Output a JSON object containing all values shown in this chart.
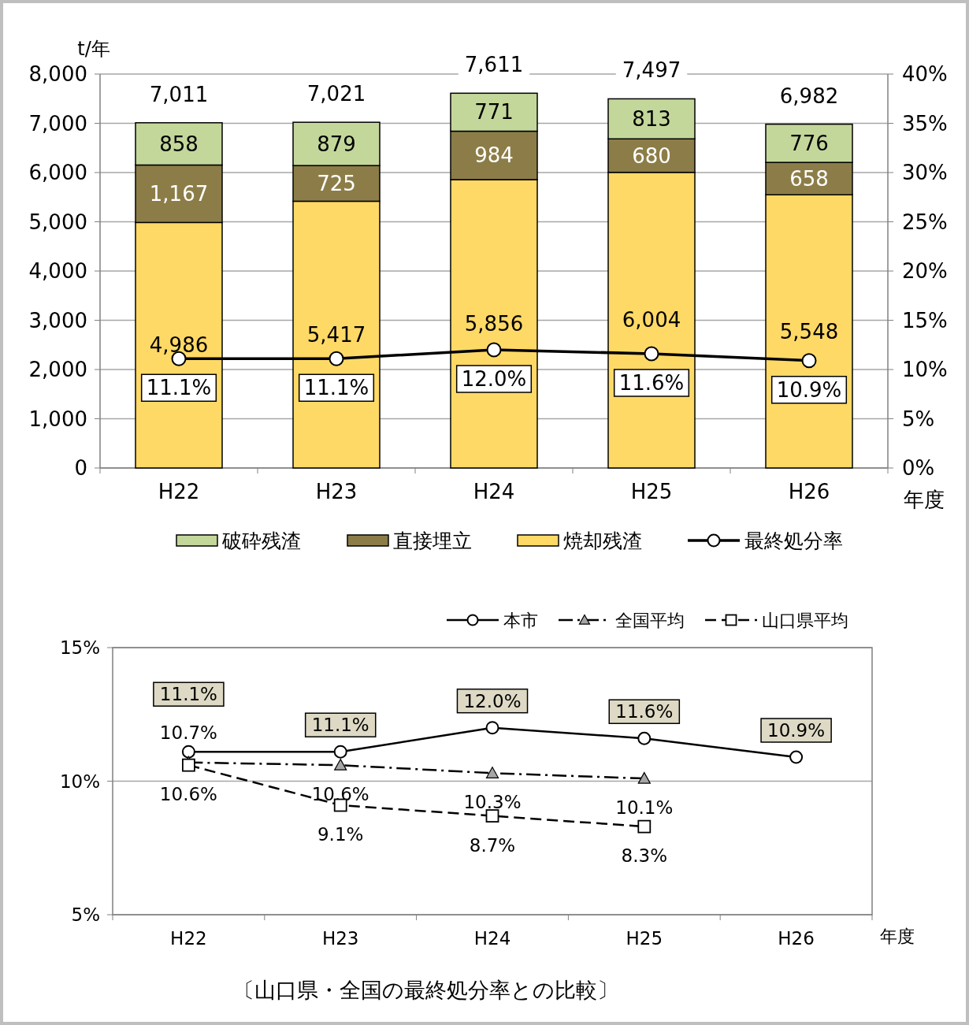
{
  "chart_data": [
    {
      "type": "bar",
      "stacked": true,
      "categories": [
        "H22",
        "H23",
        "H24",
        "H25",
        "H26"
      ],
      "ylabel": "t/年",
      "xlabel": "年度",
      "ylim": [
        0,
        8000
      ],
      "yticks": [
        {
          "value": 0,
          "label": "0"
        },
        {
          "value": 1000,
          "label": "1,000"
        },
        {
          "value": 2000,
          "label": "2,000"
        },
        {
          "value": 3000,
          "label": "3,000"
        },
        {
          "value": 4000,
          "label": "4,000"
        },
        {
          "value": 5000,
          "label": "5,000"
        },
        {
          "value": 6000,
          "label": "6,000"
        },
        {
          "value": 7000,
          "label": "7,000"
        },
        {
          "value": 8000,
          "label": "8,000"
        }
      ],
      "y2lim": [
        0,
        40
      ],
      "y2ticks": [
        {
          "value": 0,
          "label": "0%"
        },
        {
          "value": 5,
          "label": "5%"
        },
        {
          "value": 10,
          "label": "10%"
        },
        {
          "value": 15,
          "label": "15%"
        },
        {
          "value": 20,
          "label": "20%"
        },
        {
          "value": 25,
          "label": "25%"
        },
        {
          "value": 30,
          "label": "30%"
        },
        {
          "value": 35,
          "label": "35%"
        },
        {
          "value": 40,
          "label": "40%"
        }
      ],
      "grid": "y",
      "legend": "bottom",
      "totals": [
        "7,011",
        "7,021",
        "7,611",
        "7,497",
        "6,982"
      ],
      "series": [
        {
          "name": "焼却残渣",
          "color": "#ffd966",
          "values": [
            4986,
            5417,
            5856,
            6004,
            5548
          ],
          "value_labels": [
            "4,986",
            "5,417",
            "5,856",
            "6,004",
            "5,548"
          ]
        },
        {
          "name": "直接埋立",
          "color": "#8c7d48",
          "values": [
            1167,
            725,
            984,
            680,
            658
          ],
          "value_labels": [
            "1,167",
            "725",
            "984",
            "680",
            "658"
          ]
        },
        {
          "name": "破砕残渣",
          "color": "#c4d79b",
          "values": [
            858,
            879,
            771,
            813,
            776
          ],
          "value_labels": [
            "858",
            "879",
            "771",
            "813",
            "776"
          ]
        },
        {
          "name": "最終処分率",
          "type": "line",
          "axis": "y2",
          "color": "#000000",
          "marker": "circle",
          "line_style": "solid",
          "values": [
            11.1,
            11.1,
            12.0,
            11.6,
            10.9
          ],
          "value_labels": [
            "11.1%",
            "11.1%",
            "12.0%",
            "11.6%",
            "10.9%"
          ]
        }
      ]
    },
    {
      "type": "line",
      "categories": [
        "H22",
        "H23",
        "H24",
        "H25",
        "H26"
      ],
      "xlabel": "年度",
      "ylim": [
        5,
        15
      ],
      "yticks": [
        {
          "value": 5,
          "label": "5%"
        },
        {
          "value": 10,
          "label": "10%"
        },
        {
          "value": 15,
          "label": "15%"
        }
      ],
      "grid": "y",
      "legend": "top right",
      "annotations": [
        "〔山口県・全国の最終処分率との比較〕"
      ],
      "series": [
        {
          "name": "本市",
          "color": "#000000",
          "marker": "circle",
          "line_style": "solid",
          "values": [
            11.1,
            11.1,
            12.0,
            11.6,
            10.9
          ],
          "value_labels": [
            "11.1%",
            "11.1%",
            "12.0%",
            "11.6%",
            "10.9%"
          ]
        },
        {
          "name": "全国平均",
          "color": "#000000",
          "marker": "triangle",
          "line_style": "dashdot",
          "values": [
            10.7,
            10.6,
            10.3,
            10.1,
            null
          ],
          "value_labels": [
            "10.7%",
            "10.6%",
            "10.3%",
            "10.1%",
            null
          ]
        },
        {
          "name": "山口県平均",
          "color": "#000000",
          "marker": "square",
          "line_style": "dashed",
          "values": [
            10.6,
            9.1,
            8.7,
            8.3,
            null
          ],
          "value_labels": [
            "10.6%",
            "9.1%",
            "8.7%",
            "8.3%",
            null
          ]
        }
      ]
    }
  ]
}
